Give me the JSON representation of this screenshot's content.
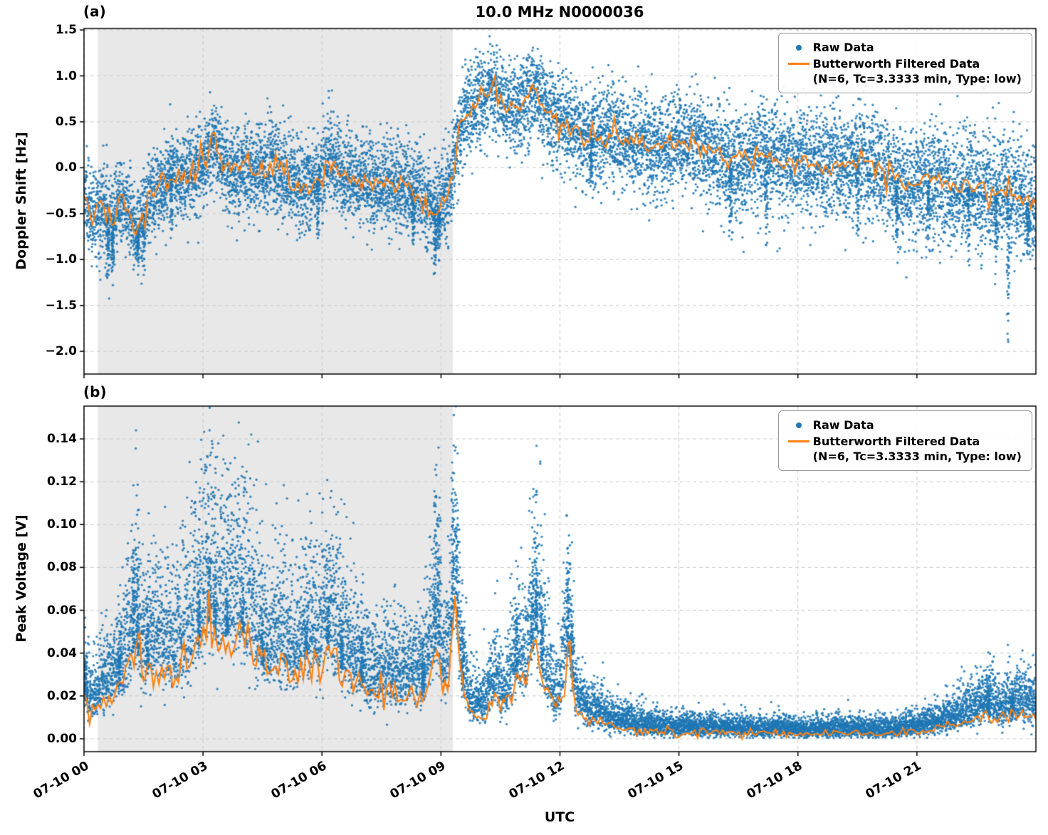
{
  "figure_title": "10.0 MHz N0000036",
  "chart_data": [
    {
      "id": "a",
      "type": "scatter",
      "panel_label": "(a)",
      "title": "10.0 MHz N0000036",
      "ylabel": "Doppler Shift [Hz]",
      "ylim": [
        -2.247,
        1.516
      ],
      "xlim_hours": [
        0,
        24
      ],
      "yticks": [
        1.5,
        1.0,
        0.5,
        0.0,
        -0.5,
        -1.0,
        -1.5,
        -2.0
      ],
      "ytick_labels": [
        "1.5",
        "1.0",
        "0.5",
        "0.0",
        "−0.5",
        "−1.0",
        "−1.5",
        "−2.0"
      ],
      "xticks_hours": [
        0,
        3,
        6,
        9,
        12,
        15,
        18,
        21
      ],
      "grid": "dashed",
      "shaded_span_hours": [
        0.35,
        9.3
      ],
      "shade_color": "#e8e8e8",
      "raw_color": "#1f77b4",
      "filtered_color": "#ff7f0e",
      "legend_position": "upper right",
      "legend": [
        {
          "label": "Raw Data",
          "marker": "dot",
          "color": "#1f77b4"
        },
        {
          "label": "Butterworth Filtered Data",
          "label2": "(N=6, Tc=3.3333 min, Type: low)",
          "marker": "line",
          "color": "#ff7f0e"
        }
      ],
      "series": {
        "filtered_trend": {
          "name": "Butterworth Filtered Data",
          "units": "Hz",
          "t": [
            0,
            0.25,
            0.5,
            0.7,
            0.9,
            1.1,
            1.3,
            1.5,
            1.7,
            2.0,
            2.3,
            2.6,
            2.9,
            3.1,
            3.3,
            3.5,
            3.8,
            4.1,
            4.4,
            4.7,
            5.0,
            5.3,
            5.6,
            5.9,
            6.2,
            6.4,
            6.7,
            7.0,
            7.3,
            7.6,
            7.9,
            8.2,
            8.5,
            8.8,
            9.0,
            9.2,
            9.35,
            9.5,
            9.7,
            9.9,
            10.1,
            10.3,
            10.5,
            10.7,
            10.9,
            11.1,
            11.3,
            11.5,
            11.8,
            12.1,
            12.4,
            12.7,
            13.0,
            13.3,
            13.6,
            14.0,
            14.4,
            14.8,
            15.2,
            15.6,
            16.0,
            16.4,
            16.8,
            17.2,
            17.6,
            18.0,
            18.4,
            18.8,
            19.2,
            19.6,
            20.0,
            20.4,
            20.8,
            21.2,
            21.6,
            22.0,
            22.4,
            22.8,
            23.2,
            23.6,
            24.0
          ],
          "v": [
            -0.3,
            -0.5,
            -0.45,
            -0.6,
            -0.35,
            -0.45,
            -0.7,
            -0.5,
            -0.3,
            -0.15,
            -0.05,
            -0.1,
            0.0,
            0.1,
            0.3,
            0.05,
            -0.05,
            0.0,
            -0.05,
            0.05,
            -0.1,
            -0.15,
            -0.2,
            -0.1,
            0.1,
            -0.05,
            -0.15,
            -0.1,
            -0.2,
            -0.15,
            -0.2,
            -0.25,
            -0.3,
            -0.5,
            -0.4,
            -0.25,
            0.1,
            0.45,
            0.6,
            0.7,
            0.75,
            0.9,
            0.7,
            0.6,
            0.65,
            0.7,
            0.9,
            0.7,
            0.55,
            0.5,
            0.4,
            0.3,
            0.35,
            0.4,
            0.3,
            0.25,
            0.2,
            0.25,
            0.3,
            0.2,
            0.15,
            0.05,
            0.1,
            0.15,
            0.0,
            0.1,
            0.05,
            0.0,
            0.05,
            0.1,
            -0.05,
            -0.1,
            -0.2,
            -0.15,
            -0.1,
            -0.25,
            -0.2,
            -0.3,
            -0.25,
            -0.3,
            -0.45
          ]
        },
        "raw_noise_sd": {
          "t": [
            0,
            8.5,
            9.3,
            10.5,
            13,
            16,
            20,
            24
          ],
          "v": [
            0.24,
            0.24,
            0.26,
            0.25,
            0.26,
            0.28,
            0.3,
            0.33
          ]
        },
        "raw_outlier_events": [
          [
            0.6,
            -1.45
          ],
          [
            0.72,
            -1.3
          ],
          [
            1.35,
            -1.1
          ],
          [
            1.5,
            -1.25
          ],
          [
            2.2,
            -0.85
          ],
          [
            5.9,
            -0.95
          ],
          [
            8.3,
            -0.95
          ],
          [
            8.85,
            -1.2
          ],
          [
            8.95,
            -1.05
          ],
          [
            12.8,
            -0.35
          ],
          [
            16.3,
            -0.85
          ],
          [
            17.2,
            -0.95
          ],
          [
            19.5,
            -0.95
          ],
          [
            20.5,
            -1.0
          ],
          [
            21.3,
            -1.05
          ],
          [
            22.3,
            -1.1
          ],
          [
            23.0,
            -1.2
          ],
          [
            23.3,
            -2.05
          ],
          [
            23.8,
            -1.05
          ]
        ]
      }
    },
    {
      "id": "b",
      "type": "scatter",
      "panel_label": "(b)",
      "ylabel": "Peak Voltage [V]",
      "xlabel": "UTC",
      "ylim": [
        -0.006,
        0.1553
      ],
      "xlim_hours": [
        0,
        24
      ],
      "yticks": [
        0.14,
        0.12,
        0.1,
        0.08,
        0.06,
        0.04,
        0.02,
        0.0
      ],
      "ytick_labels": [
        "0.14",
        "0.12",
        "0.10",
        "0.08",
        "0.06",
        "0.04",
        "0.02",
        "0.00"
      ],
      "xticks_hours": [
        0,
        3,
        6,
        9,
        12,
        15,
        18,
        21
      ],
      "xtick_labels": [
        "07-10 00",
        "07-10 03",
        "07-10 06",
        "07-10 09",
        "07-10 12",
        "07-10 15",
        "07-10 18",
        "07-10 21"
      ],
      "grid": "dashed",
      "shaded_span_hours": [
        0.35,
        9.3
      ],
      "shade_color": "#e8e8e8",
      "raw_color": "#1f77b4",
      "filtered_color": "#ff7f0e",
      "legend_position": "upper right",
      "legend": [
        {
          "label": "Raw Data",
          "marker": "dot",
          "color": "#1f77b4"
        },
        {
          "label": "Butterworth Filtered Data",
          "label2": "(N=6, Tc=3.3333 min, Type: low)",
          "marker": "line",
          "color": "#ff7f0e"
        }
      ],
      "series": {
        "filtered_trend": {
          "name": "Butterworth Filtered Data",
          "units": "V",
          "t": [
            0,
            0.15,
            0.35,
            0.6,
            0.85,
            1.1,
            1.3,
            1.5,
            1.75,
            2.0,
            2.25,
            2.5,
            2.75,
            3.0,
            3.2,
            3.4,
            3.6,
            3.8,
            4.0,
            4.2,
            4.45,
            4.7,
            5.0,
            5.3,
            5.6,
            5.9,
            6.15,
            6.4,
            6.7,
            7.0,
            7.3,
            7.6,
            7.9,
            8.2,
            8.5,
            8.75,
            8.9,
            9.05,
            9.2,
            9.35,
            9.5,
            9.7,
            9.9,
            10.1,
            10.35,
            10.6,
            10.9,
            11.15,
            11.4,
            11.6,
            11.85,
            12.0,
            12.2,
            12.4,
            12.7,
            13.0,
            13.3,
            13.7,
            14.1,
            14.5,
            15.0,
            15.5,
            16.0,
            16.5,
            17.0,
            17.5,
            18.0,
            18.5,
            19.0,
            19.5,
            20.0,
            20.5,
            21.0,
            21.5,
            22.0,
            22.4,
            22.8,
            23.1,
            23.4,
            23.7,
            24.0
          ],
          "v": [
            0.02,
            0.012,
            0.015,
            0.018,
            0.022,
            0.03,
            0.045,
            0.028,
            0.035,
            0.032,
            0.028,
            0.035,
            0.04,
            0.046,
            0.058,
            0.042,
            0.048,
            0.044,
            0.05,
            0.042,
            0.035,
            0.03,
            0.034,
            0.028,
            0.038,
            0.032,
            0.042,
            0.035,
            0.028,
            0.024,
            0.02,
            0.022,
            0.019,
            0.022,
            0.02,
            0.03,
            0.048,
            0.022,
            0.03,
            0.065,
            0.028,
            0.014,
            0.01,
            0.012,
            0.02,
            0.014,
            0.028,
            0.024,
            0.05,
            0.028,
            0.012,
            0.015,
            0.042,
            0.014,
            0.009,
            0.008,
            0.006,
            0.005,
            0.004,
            0.0035,
            0.003,
            0.0035,
            0.003,
            0.0028,
            0.0025,
            0.003,
            0.0022,
            0.0025,
            0.0028,
            0.0025,
            0.0022,
            0.0028,
            0.0035,
            0.005,
            0.007,
            0.009,
            0.012,
            0.009,
            0.011,
            0.012,
            0.01
          ]
        },
        "raw_outlier_events": [
          [
            0.05,
            0.045
          ],
          [
            0.9,
            0.052
          ],
          [
            1.25,
            0.099
          ],
          [
            1.35,
            0.088
          ],
          [
            1.6,
            0.07
          ],
          [
            2.9,
            0.075
          ],
          [
            3.15,
            0.091
          ],
          [
            3.3,
            0.083
          ],
          [
            3.6,
            0.072
          ],
          [
            4.0,
            0.068
          ],
          [
            4.5,
            0.06
          ],
          [
            5.6,
            0.062
          ],
          [
            6.15,
            0.066
          ],
          [
            6.5,
            0.06
          ],
          [
            7.0,
            0.052
          ],
          [
            8.55,
            0.05
          ],
          [
            8.85,
            0.133
          ],
          [
            8.95,
            0.12
          ],
          [
            9.3,
            0.145
          ],
          [
            9.4,
            0.128
          ],
          [
            9.55,
            0.06
          ],
          [
            10.9,
            0.062
          ],
          [
            11.3,
            0.08
          ],
          [
            11.4,
            0.092
          ],
          [
            11.55,
            0.075
          ],
          [
            12.2,
            0.086
          ],
          [
            12.3,
            0.07
          ],
          [
            22.8,
            0.027
          ],
          [
            23.4,
            0.024
          ]
        ]
      }
    }
  ]
}
